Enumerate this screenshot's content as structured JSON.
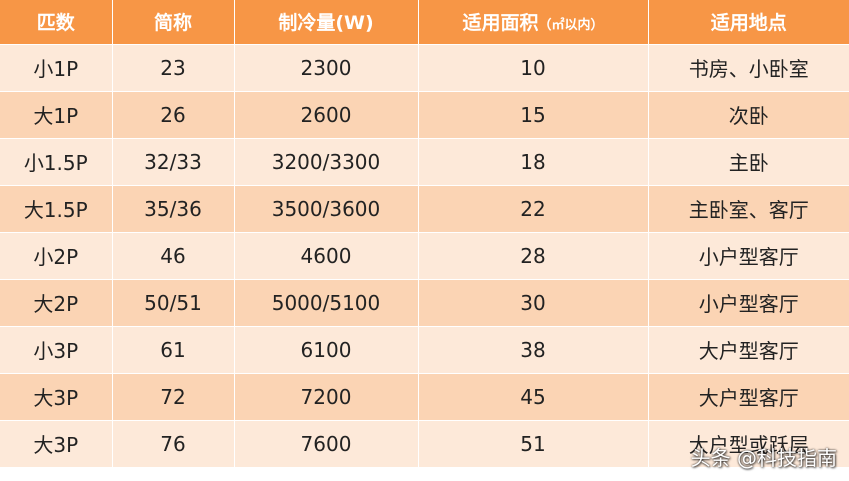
{
  "table": {
    "headers": [
      "匹数",
      "简称",
      "制冷量(W)",
      "适用面积",
      "适用地点"
    ],
    "area_header_unit": "（㎡以内）",
    "rows": [
      [
        "小1P",
        "23",
        "2300",
        "10",
        "书房、小卧室"
      ],
      [
        "大1P",
        "26",
        "2600",
        "15",
        "次卧"
      ],
      [
        "小1.5P",
        "32/33",
        "3200/3300",
        "18",
        "主卧"
      ],
      [
        "大1.5P",
        "35/36",
        "3500/3600",
        "22",
        "主卧室、客厅"
      ],
      [
        "小2P",
        "46",
        "4600",
        "28",
        "小户型客厅"
      ],
      [
        "大2P",
        "50/51",
        "5000/5100",
        "30",
        "小户型客厅"
      ],
      [
        "小3P",
        "61",
        "6100",
        "38",
        "大户型客厅"
      ],
      [
        "大3P",
        "72",
        "7200",
        "45",
        "大户型客厅"
      ],
      [
        "大3P",
        "76",
        "7600",
        "51",
        "大户型或跃层"
      ]
    ]
  },
  "watermark": "头条 @科技指南",
  "colors": {
    "header_bg": "#f79646",
    "row_light": "#fde9d9",
    "row_dark": "#fbd4b4",
    "header_text": "#ffffff",
    "cell_text": "#222222"
  }
}
